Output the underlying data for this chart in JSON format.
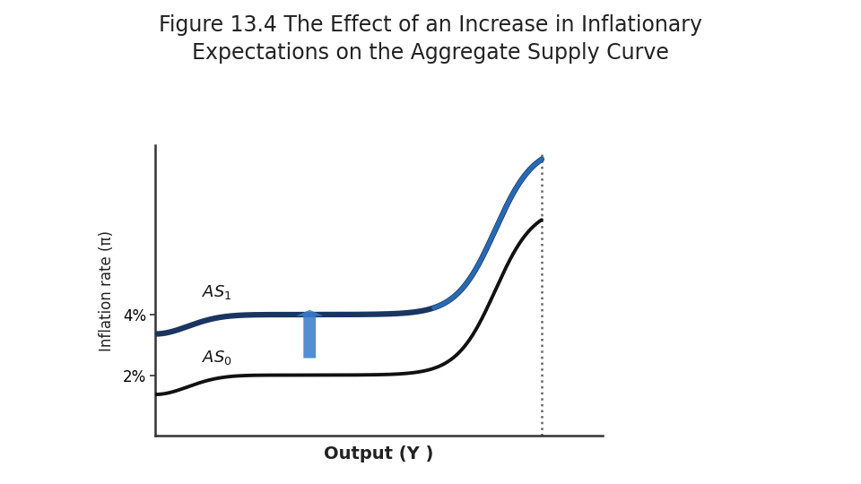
{
  "title_line1": "Figure 13.4 The Effect of an Increase in Inflationary",
  "title_line2": "Expectations on the Aggregate Supply Curve",
  "title_fontsize": 17,
  "title_color": "#222222",
  "ylabel": "Inflation rate (π)",
  "xlabel": "Output (Y )",
  "ylabel_fontsize": 12,
  "xlabel_fontsize": 14,
  "as0_color": "#111111",
  "as1_color": "#1a3560",
  "as1_top_color": "#2a6fbd",
  "vline_x": 9.5,
  "arrow_color_top": "#3a7fcc",
  "arrow_color_bottom": "#a8cce8",
  "background_color": "#ffffff",
  "y2pct": 2.5,
  "y4pct": 5.0,
  "ymax": 12.0,
  "xmax": 11.0
}
